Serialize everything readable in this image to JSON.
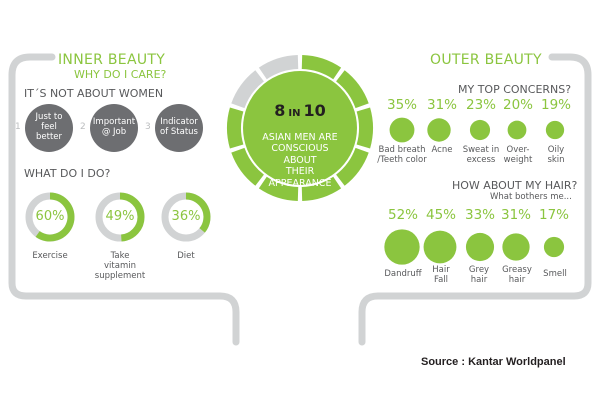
{
  "colors": {
    "green": "#8bc53f",
    "dark_gray": "#6d6e71",
    "light_gray": "#d1d3d4"
  },
  "inner": {
    "title": "INNER BEAUTY",
    "subtitle": "WHY DO I CARE?",
    "section1": "IT´S NOT ABOUT WOMEN",
    "reasons": [
      {
        "num": "1",
        "label": "Just to\nfeel\nbetter"
      },
      {
        "num": "2",
        "label": "Important\n@ Job"
      },
      {
        "num": "3",
        "label": "Indicator\nof Status"
      }
    ],
    "section2": "WHAT DO I DO?"
  },
  "center": {
    "headline_number": "8",
    "headline_in": "IN",
    "headline_total": "10",
    "text": "ASIAN MEN ARE\nCONSCIOUS ABOUT\nTHEIR\nAPPEARANCE",
    "ratio": 0.8
  },
  "outer": {
    "title": "OUTER BEAUTY",
    "section1": "MY TOP CONCERNS?",
    "section2": "HOW ABOUT MY HAIR?",
    "section2_sub": "What bothers me..."
  },
  "source": "Source : Kantar Worldpanel",
  "chart_data": [
    {
      "type": "donut",
      "categories": [
        "Exercise",
        "Take\nvitamin\nsupplement",
        "Diet"
      ],
      "values": [
        60,
        49,
        36
      ],
      "labels": [
        "60%",
        "49%",
        "36%"
      ]
    },
    {
      "type": "bubble",
      "categories": [
        "Bad breath\n/Teeth color",
        "Acne",
        "Sweat in\nexcess",
        "Over-\nweight",
        "Oily\nskin"
      ],
      "values": [
        35,
        31,
        23,
        20,
        19
      ],
      "labels": [
        "35%",
        "31%",
        "23%",
        "20%",
        "19%"
      ]
    },
    {
      "type": "bubble",
      "categories": [
        "Dandruff",
        "Hair\nFall",
        "Grey\nhair",
        "Greasy\nhair",
        "Smell"
      ],
      "values": [
        52,
        45,
        33,
        31,
        17
      ],
      "labels": [
        "52%",
        "45%",
        "33%",
        "31%",
        "17%"
      ]
    }
  ]
}
